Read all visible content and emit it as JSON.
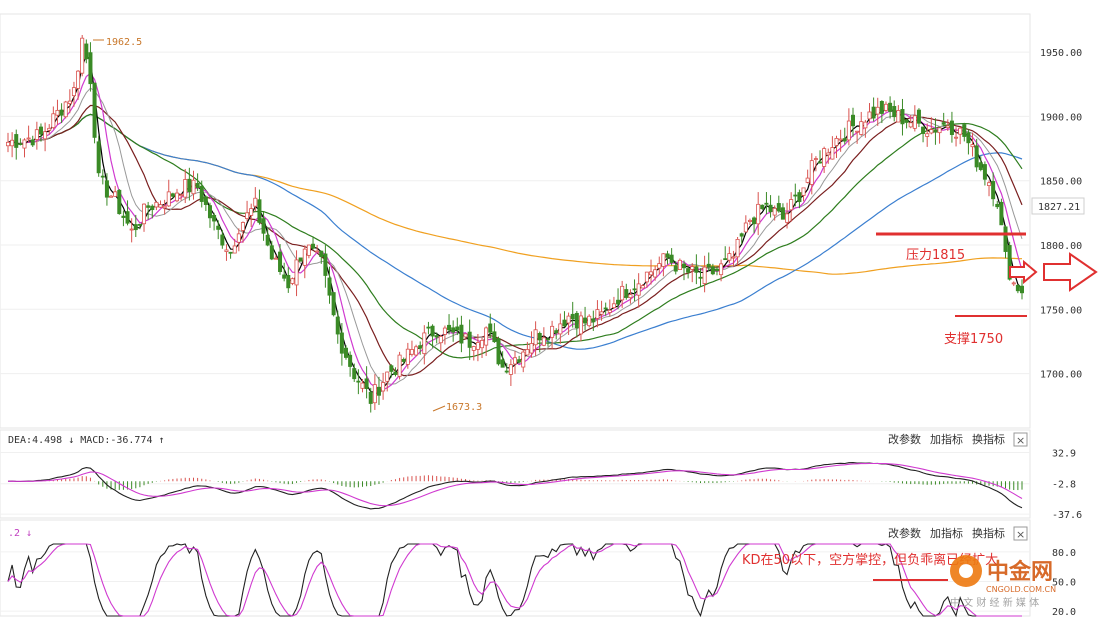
{
  "chart_data": {
    "type": "candlestick",
    "main": {
      "ylim": [
        1660,
        1975
      ],
      "y_ticks": [
        "1950.00",
        "1900.00",
        "1850.00",
        "1800.00",
        "1750.00",
        "1700.00"
      ],
      "y_tick_values": [
        1950,
        1900,
        1850,
        1800,
        1750,
        1700
      ],
      "current_price_label": "1827.21",
      "current_price": 1827.21,
      "high_label": "1962.5",
      "low_label": "1673.3",
      "key_points": [
        [
          0,
          1880
        ],
        [
          8,
          1885
        ],
        [
          16,
          1920
        ],
        [
          18,
          1960
        ],
        [
          20,
          1930
        ],
        [
          22,
          1850
        ],
        [
          26,
          1835
        ],
        [
          30,
          1810
        ],
        [
          34,
          1830
        ],
        [
          38,
          1835
        ],
        [
          42,
          1845
        ],
        [
          46,
          1845
        ],
        [
          50,
          1815
        ],
        [
          54,
          1795
        ],
        [
          56,
          1815
        ],
        [
          60,
          1830
        ],
        [
          64,
          1790
        ],
        [
          68,
          1770
        ],
        [
          72,
          1800
        ],
        [
          76,
          1785
        ],
        [
          80,
          1730
        ],
        [
          84,
          1700
        ],
        [
          88,
          1680
        ],
        [
          92,
          1700
        ],
        [
          96,
          1710
        ],
        [
          100,
          1725
        ],
        [
          104,
          1735
        ],
        [
          108,
          1730
        ],
        [
          112,
          1725
        ],
        [
          116,
          1735
        ],
        [
          120,
          1705
        ],
        [
          124,
          1715
        ],
        [
          128,
          1730
        ],
        [
          132,
          1735
        ],
        [
          136,
          1745
        ],
        [
          140,
          1740
        ],
        [
          144,
          1745
        ],
        [
          148,
          1760
        ],
        [
          152,
          1770
        ],
        [
          156,
          1780
        ],
        [
          160,
          1790
        ],
        [
          164,
          1780
        ],
        [
          168,
          1775
        ],
        [
          172,
          1780
        ],
        [
          176,
          1790
        ],
        [
          180,
          1820
        ],
        [
          184,
          1830
        ],
        [
          188,
          1820
        ],
        [
          192,
          1840
        ],
        [
          196,
          1865
        ],
        [
          200,
          1880
        ],
        [
          204,
          1890
        ],
        [
          208,
          1900
        ],
        [
          212,
          1905
        ],
        [
          216,
          1900
        ],
        [
          220,
          1895
        ],
        [
          224,
          1890
        ],
        [
          228,
          1895
        ],
        [
          232,
          1885
        ],
        [
          236,
          1860
        ],
        [
          238,
          1850
        ],
        [
          240,
          1835
        ],
        [
          242,
          1790
        ],
        [
          244,
          1770
        ],
        [
          246,
          1765
        ]
      ],
      "annotations": [
        {
          "text": "压力1815",
          "value": 1815
        },
        {
          "text": "支撑1750",
          "value": 1750
        }
      ]
    },
    "macd": {
      "header": "DEA:4.498 ↓ MACD:-36.774 ↑",
      "ylim": [
        -42,
        38
      ],
      "y_ticks": [
        "32.9",
        "-2.8",
        "-37.6"
      ],
      "y_tick_values": [
        32.9,
        -2.8,
        -37.6
      ]
    },
    "kd": {
      "header": ".2 ↓",
      "ylim": [
        15,
        88
      ],
      "y_ticks": [
        "80.0",
        "50.0",
        "20.0"
      ],
      "y_tick_values": [
        80,
        50,
        20
      ],
      "note": "KD在50以下，空方掌控，但负乖离已经扩大"
    }
  },
  "panel_buttons": {
    "params": "改参数",
    "add": "加指标",
    "switch": "换指标",
    "close": "×"
  },
  "watermark": {
    "name": "中金网",
    "url": "CNGOLD.COM.CN",
    "slogan": "中 文 财 经 新 媒 体"
  },
  "colors": {
    "up": "#d9534f",
    "down": "#3a8a26",
    "ma5": "#000000",
    "ma10": "#d03ad0",
    "ma20": "#999999",
    "ma30": "#7a1f1f",
    "ma60": "#2e7d1e",
    "ma120": "#3b7fd0",
    "ma250": "#f0a020",
    "annotation": "#e03030"
  }
}
